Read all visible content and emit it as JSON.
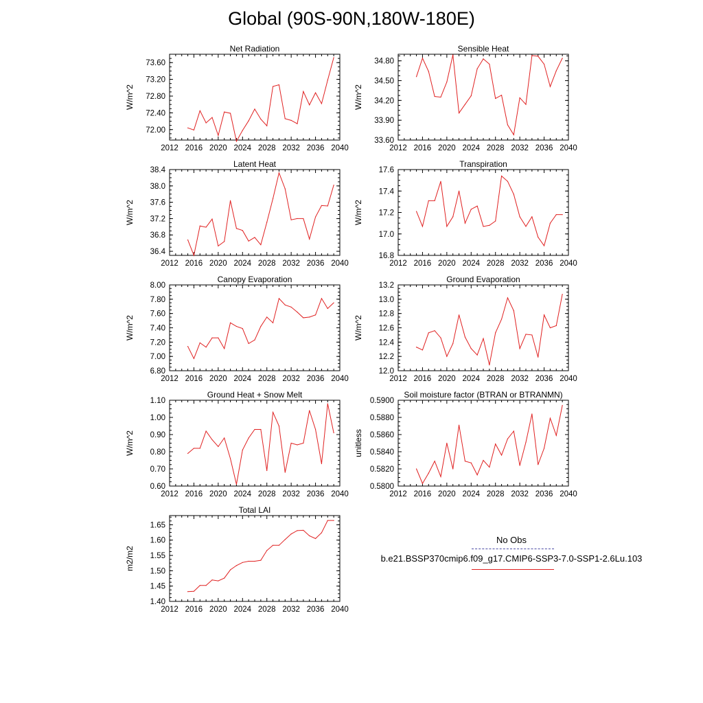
{
  "page_title": "Global (90S-90N,180W-180E)",
  "legend": {
    "obs_label": "No Obs",
    "model_label": "b.e21.BSSP370cmip6.f09_g17.CMIP6-SSP3-7.0-SSP1-2.6Lu.103",
    "obs_color": "#4b4ba6",
    "model_color": "#e02020"
  },
  "chart_data": [
    {
      "type": "line",
      "title": "Net Radiation",
      "ylabel": "W/m^2",
      "xlim": [
        2012,
        2040
      ],
      "ylim": [
        71.75,
        73.8
      ],
      "xticks": [
        2012,
        2016,
        2020,
        2024,
        2028,
        2032,
        2036,
        2040
      ],
      "yticks": [
        72.0,
        72.4,
        72.8,
        73.2,
        73.6
      ],
      "ytick_labels": [
        "72.00",
        "72.40",
        "72.80",
        "73.20",
        "73.60"
      ],
      "x": [
        2015,
        2016,
        2017,
        2018,
        2019,
        2020,
        2021,
        2022,
        2023,
        2024,
        2025,
        2026,
        2027,
        2028,
        2029,
        2030,
        2031,
        2032,
        2033,
        2034,
        2035,
        2036,
        2037,
        2038,
        2039
      ],
      "series": [
        {
          "name": "b.e21.BSSP370cmip6.f09_g17.CMIP6-SSP3-7.0-SSP1-2.6Lu.103",
          "values": [
            72.04,
            71.99,
            72.45,
            72.16,
            72.29,
            71.86,
            72.42,
            72.39,
            71.72,
            71.98,
            72.21,
            72.49,
            72.25,
            72.09,
            73.03,
            73.07,
            72.26,
            72.22,
            72.14,
            72.91,
            72.59,
            72.88,
            72.62,
            73.18,
            73.72
          ]
        }
      ]
    },
    {
      "type": "line",
      "title": "Sensible Heat",
      "ylabel": "W/m^2",
      "xlim": [
        2012,
        2040
      ],
      "ylim": [
        33.6,
        34.9
      ],
      "xticks": [
        2012,
        2016,
        2020,
        2024,
        2028,
        2032,
        2036,
        2040
      ],
      "yticks": [
        33.6,
        33.9,
        34.2,
        34.5,
        34.8
      ],
      "ytick_labels": [
        "33.60",
        "33.90",
        "34.20",
        "34.50",
        "34.80"
      ],
      "x": [
        2015,
        2016,
        2017,
        2018,
        2019,
        2020,
        2021,
        2022,
        2023,
        2024,
        2025,
        2026,
        2027,
        2028,
        2029,
        2030,
        2031,
        2032,
        2033,
        2034,
        2035,
        2036,
        2037,
        2038,
        2039
      ],
      "series": [
        {
          "name": "b.e21.BSSP370cmip6.f09_g17.CMIP6-SSP3-7.0-SSP1-2.6Lu.103",
          "values": [
            34.56,
            34.84,
            34.64,
            34.26,
            34.25,
            34.48,
            34.89,
            34.01,
            34.14,
            34.27,
            34.68,
            34.83,
            34.75,
            34.23,
            34.28,
            33.83,
            33.68,
            34.24,
            34.14,
            34.88,
            34.87,
            34.75,
            34.41,
            34.65,
            34.84
          ]
        }
      ]
    },
    {
      "type": "line",
      "title": "Latent Heat",
      "ylabel": "W/m^2",
      "xlim": [
        2012,
        2040
      ],
      "ylim": [
        36.3,
        38.4
      ],
      "xticks": [
        2012,
        2016,
        2020,
        2024,
        2028,
        2032,
        2036,
        2040
      ],
      "yticks": [
        36.4,
        36.8,
        37.2,
        37.6,
        38.0,
        38.4
      ],
      "ytick_labels": [
        "36.4",
        "36.8",
        "37.2",
        "37.6",
        "38.0",
        "38.4"
      ],
      "x": [
        2015,
        2016,
        2017,
        2018,
        2019,
        2020,
        2021,
        2022,
        2023,
        2024,
        2025,
        2026,
        2027,
        2028,
        2029,
        2030,
        2031,
        2032,
        2033,
        2034,
        2035,
        2036,
        2037,
        2038,
        2039
      ],
      "series": [
        {
          "name": "b.e21.BSSP370cmip6.f09_g17.CMIP6-SSP3-7.0-SSP1-2.6Lu.103",
          "values": [
            36.68,
            36.3,
            37.02,
            36.99,
            37.19,
            36.53,
            36.64,
            37.64,
            36.96,
            36.91,
            36.65,
            36.74,
            36.56,
            37.11,
            37.69,
            38.32,
            37.93,
            37.17,
            37.2,
            37.2,
            36.7,
            37.24,
            37.52,
            37.51,
            38.02
          ]
        }
      ]
    },
    {
      "type": "line",
      "title": "Transpiration",
      "ylabel": "W/m^2",
      "xlim": [
        2012,
        2040
      ],
      "ylim": [
        16.8,
        17.6
      ],
      "xticks": [
        2012,
        2016,
        2020,
        2024,
        2028,
        2032,
        2036,
        2040
      ],
      "yticks": [
        16.8,
        17.0,
        17.2,
        17.4,
        17.6
      ],
      "ytick_labels": [
        "16.8",
        "17.0",
        "17.2",
        "17.4",
        "17.6"
      ],
      "x": [
        2015,
        2016,
        2017,
        2018,
        2019,
        2020,
        2021,
        2022,
        2023,
        2024,
        2025,
        2026,
        2027,
        2028,
        2029,
        2030,
        2031,
        2032,
        2033,
        2034,
        2035,
        2036,
        2037,
        2038,
        2039
      ],
      "series": [
        {
          "name": "b.e21.BSSP370cmip6.f09_g17.CMIP6-SSP3-7.0-SSP1-2.6Lu.103",
          "values": [
            17.21,
            17.07,
            17.31,
            17.31,
            17.49,
            17.07,
            17.16,
            17.4,
            17.1,
            17.23,
            17.26,
            17.07,
            17.08,
            17.12,
            17.54,
            17.49,
            17.37,
            17.16,
            17.07,
            17.16,
            16.97,
            16.89,
            17.1,
            17.18,
            17.18
          ]
        }
      ]
    },
    {
      "type": "line",
      "title": "Canopy Evaporation",
      "ylabel": "W/m^2",
      "xlim": [
        2012,
        2040
      ],
      "ylim": [
        6.8,
        8.0
      ],
      "xticks": [
        2012,
        2016,
        2020,
        2024,
        2028,
        2032,
        2036,
        2040
      ],
      "yticks": [
        6.8,
        7.0,
        7.2,
        7.4,
        7.6,
        7.8,
        8.0
      ],
      "ytick_labels": [
        "6.80",
        "7.00",
        "7.20",
        "7.40",
        "7.60",
        "7.80",
        "8.00"
      ],
      "x": [
        2015,
        2016,
        2017,
        2018,
        2019,
        2020,
        2021,
        2022,
        2023,
        2024,
        2025,
        2026,
        2027,
        2028,
        2029,
        2030,
        2031,
        2032,
        2033,
        2034,
        2035,
        2036,
        2037,
        2038,
        2039
      ],
      "series": [
        {
          "name": "b.e21.BSSP370cmip6.f09_g17.CMIP6-SSP3-7.0-SSP1-2.6Lu.103",
          "values": [
            7.14,
            6.97,
            7.19,
            7.13,
            7.26,
            7.26,
            7.11,
            7.47,
            7.42,
            7.39,
            7.18,
            7.23,
            7.42,
            7.55,
            7.47,
            7.81,
            7.72,
            7.69,
            7.62,
            7.54,
            7.55,
            7.58,
            7.81,
            7.67,
            7.75
          ]
        }
      ]
    },
    {
      "type": "line",
      "title": "Ground Evaporation",
      "ylabel": "W/m^2",
      "xlim": [
        2012,
        2040
      ],
      "ylim": [
        12.0,
        13.2
      ],
      "xticks": [
        2012,
        2016,
        2020,
        2024,
        2028,
        2032,
        2036,
        2040
      ],
      "yticks": [
        12.0,
        12.2,
        12.4,
        12.6,
        12.8,
        13.0,
        13.2
      ],
      "ytick_labels": [
        "12.0",
        "12.2",
        "12.4",
        "12.6",
        "12.8",
        "13.0",
        "13.2"
      ],
      "x": [
        2015,
        2016,
        2017,
        2018,
        2019,
        2020,
        2021,
        2022,
        2023,
        2024,
        2025,
        2026,
        2027,
        2028,
        2029,
        2030,
        2031,
        2032,
        2033,
        2034,
        2035,
        2036,
        2037,
        2038,
        2039
      ],
      "series": [
        {
          "name": "b.e21.BSSP370cmip6.f09_g17.CMIP6-SSP3-7.0-SSP1-2.6Lu.103",
          "values": [
            12.33,
            12.29,
            12.53,
            12.56,
            12.46,
            12.2,
            12.38,
            12.78,
            12.47,
            12.31,
            12.22,
            12.45,
            12.08,
            12.53,
            12.72,
            13.02,
            12.84,
            12.31,
            12.51,
            12.5,
            12.19,
            12.78,
            12.6,
            12.63,
            13.07
          ]
        }
      ]
    },
    {
      "type": "line",
      "title": "Ground Heat + Snow Melt",
      "ylabel": "W/m^2",
      "xlim": [
        2012,
        2040
      ],
      "ylim": [
        0.6,
        1.1
      ],
      "xticks": [
        2012,
        2016,
        2020,
        2024,
        2028,
        2032,
        2036,
        2040
      ],
      "yticks": [
        0.6,
        0.7,
        0.8,
        0.9,
        1.0,
        1.1
      ],
      "ytick_labels": [
        "0.60",
        "0.70",
        "0.80",
        "0.90",
        "1.00",
        "1.10"
      ],
      "x": [
        2015,
        2016,
        2017,
        2018,
        2019,
        2020,
        2021,
        2022,
        2023,
        2024,
        2025,
        2026,
        2027,
        2028,
        2029,
        2030,
        2031,
        2032,
        2033,
        2034,
        2035,
        2036,
        2037,
        2038,
        2039
      ],
      "series": [
        {
          "name": "b.e21.BSSP370cmip6.f09_g17.CMIP6-SSP3-7.0-SSP1-2.6Lu.103",
          "values": [
            0.79,
            0.82,
            0.82,
            0.92,
            0.87,
            0.83,
            0.88,
            0.76,
            0.61,
            0.81,
            0.88,
            0.93,
            0.93,
            0.69,
            1.03,
            0.95,
            0.68,
            0.85,
            0.84,
            0.85,
            1.04,
            0.93,
            0.73,
            1.08,
            0.91
          ]
        }
      ]
    },
    {
      "type": "line",
      "title": "Soil moisture factor (BTRAN or BTRANMN)",
      "ylabel": "unitless",
      "xlim": [
        2012,
        2040
      ],
      "ylim": [
        0.58,
        0.59
      ],
      "xticks": [
        2012,
        2016,
        2020,
        2024,
        2028,
        2032,
        2036,
        2040
      ],
      "yticks": [
        0.58,
        0.582,
        0.584,
        0.586,
        0.588,
        0.59
      ],
      "ytick_labels": [
        "0.5800",
        "0.5820",
        "0.5840",
        "0.5860",
        "0.5880",
        "0.5900"
      ],
      "x": [
        2015,
        2016,
        2017,
        2018,
        2019,
        2020,
        2021,
        2022,
        2023,
        2024,
        2025,
        2026,
        2027,
        2028,
        2029,
        2030,
        2031,
        2032,
        2033,
        2034,
        2035,
        2036,
        2037,
        2038,
        2039
      ],
      "series": [
        {
          "name": "b.e21.BSSP370cmip6.f09_g17.CMIP6-SSP3-7.0-SSP1-2.6Lu.103",
          "values": [
            0.582,
            0.5803,
            0.5815,
            0.5829,
            0.5811,
            0.585,
            0.582,
            0.5871,
            0.5829,
            0.5827,
            0.5813,
            0.583,
            0.5822,
            0.5849,
            0.5836,
            0.5855,
            0.5864,
            0.5824,
            0.5851,
            0.5884,
            0.5825,
            0.5844,
            0.5879,
            0.5859,
            0.5894
          ]
        }
      ]
    },
    {
      "type": "line",
      "title": "Total LAI",
      "ylabel": "m2/m2",
      "xlim": [
        2012,
        2040
      ],
      "ylim": [
        1.4,
        1.68
      ],
      "xticks": [
        2012,
        2016,
        2020,
        2024,
        2028,
        2032,
        2036,
        2040
      ],
      "yticks": [
        1.4,
        1.45,
        1.5,
        1.55,
        1.6,
        1.65
      ],
      "ytick_labels": [
        "1.40",
        "1.45",
        "1.50",
        "1.55",
        "1.60",
        "1.65"
      ],
      "x": [
        2015,
        2016,
        2017,
        2018,
        2019,
        2020,
        2021,
        2022,
        2023,
        2024,
        2025,
        2026,
        2027,
        2028,
        2029,
        2030,
        2031,
        2032,
        2033,
        2034,
        2035,
        2036,
        2037,
        2038,
        2039
      ],
      "series": [
        {
          "name": "b.e21.BSSP370cmip6.f09_g17.CMIP6-SSP3-7.0-SSP1-2.6Lu.103",
          "values": [
            1.432,
            1.433,
            1.452,
            1.452,
            1.47,
            1.467,
            1.476,
            1.503,
            1.517,
            1.527,
            1.531,
            1.531,
            1.534,
            1.566,
            1.583,
            1.583,
            1.602,
            1.62,
            1.631,
            1.632,
            1.614,
            1.605,
            1.624,
            1.664,
            1.664
          ]
        }
      ]
    }
  ]
}
